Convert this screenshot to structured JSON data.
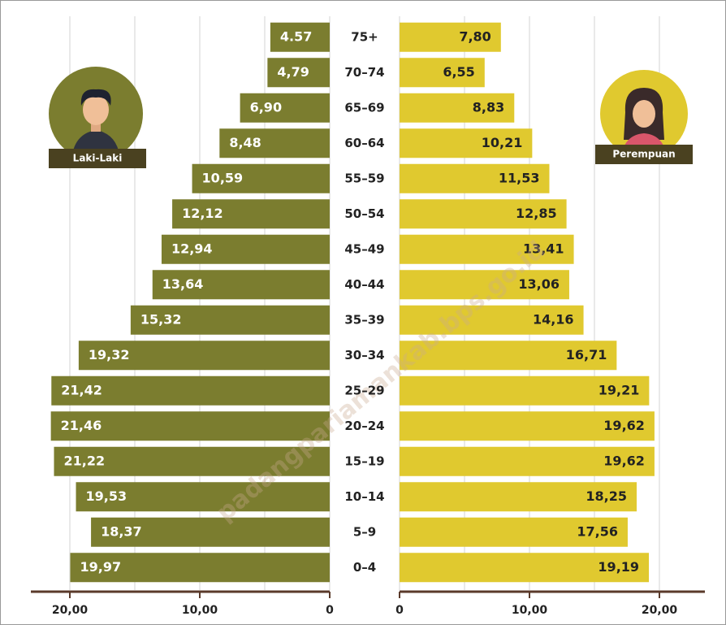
{
  "chart_data": {
    "type": "pyramid",
    "categories": [
      "75+",
      "70–74",
      "65–69",
      "60–64",
      "55–59",
      "50–54",
      "45–49",
      "40–44",
      "35–39",
      "30–34",
      "25–29",
      "20–24",
      "15–19",
      "10–14",
      "5–9",
      "0–4"
    ],
    "series": [
      {
        "name": "Laki-Laki",
        "color": "#7b7d2f",
        "axis": "x",
        "values": [
          4.57,
          4.79,
          6.9,
          8.48,
          10.59,
          12.12,
          12.94,
          13.64,
          15.32,
          19.32,
          21.42,
          21.46,
          21.22,
          19.53,
          18.37,
          19.97
        ],
        "value_labels": [
          "4.57",
          "4,79",
          "6,90",
          "8,48",
          "10,59",
          "12,12",
          "12,94",
          "13,64",
          "15,32",
          "19,32",
          "21,42",
          "21,46",
          "21,22",
          "19,53",
          "18,37",
          "19,97"
        ]
      },
      {
        "name": "Perempuan",
        "color": "#e0c92f",
        "axis": "x2",
        "values": [
          7.8,
          6.55,
          8.83,
          10.21,
          11.53,
          12.85,
          13.41,
          13.06,
          14.16,
          16.71,
          19.21,
          19.62,
          19.62,
          18.25,
          17.56,
          19.19
        ],
        "value_labels": [
          "7,80",
          "6,55",
          "8,83",
          "10,21",
          "11,53",
          "12,85",
          "13,41",
          "13,06",
          "14,16",
          "16,71",
          "19,21",
          "19,62",
          "19,62",
          "18,25",
          "17,56",
          "19,19"
        ]
      }
    ],
    "xlim": [
      0,
      23
    ],
    "xticks": [
      {
        "value": 20,
        "label": "20,00"
      },
      {
        "value": 10,
        "label": "10,00"
      },
      0
    ],
    "x2lim": [
      0,
      23.5
    ],
    "x2ticks": [
      0,
      {
        "value": 10,
        "label": "10,00"
      },
      {
        "value": 20,
        "label": "20,00"
      }
    ],
    "grid": true,
    "minor_grid": [
      5,
      15
    ],
    "watermark": "padangpariamankab.bps.go.id"
  }
}
